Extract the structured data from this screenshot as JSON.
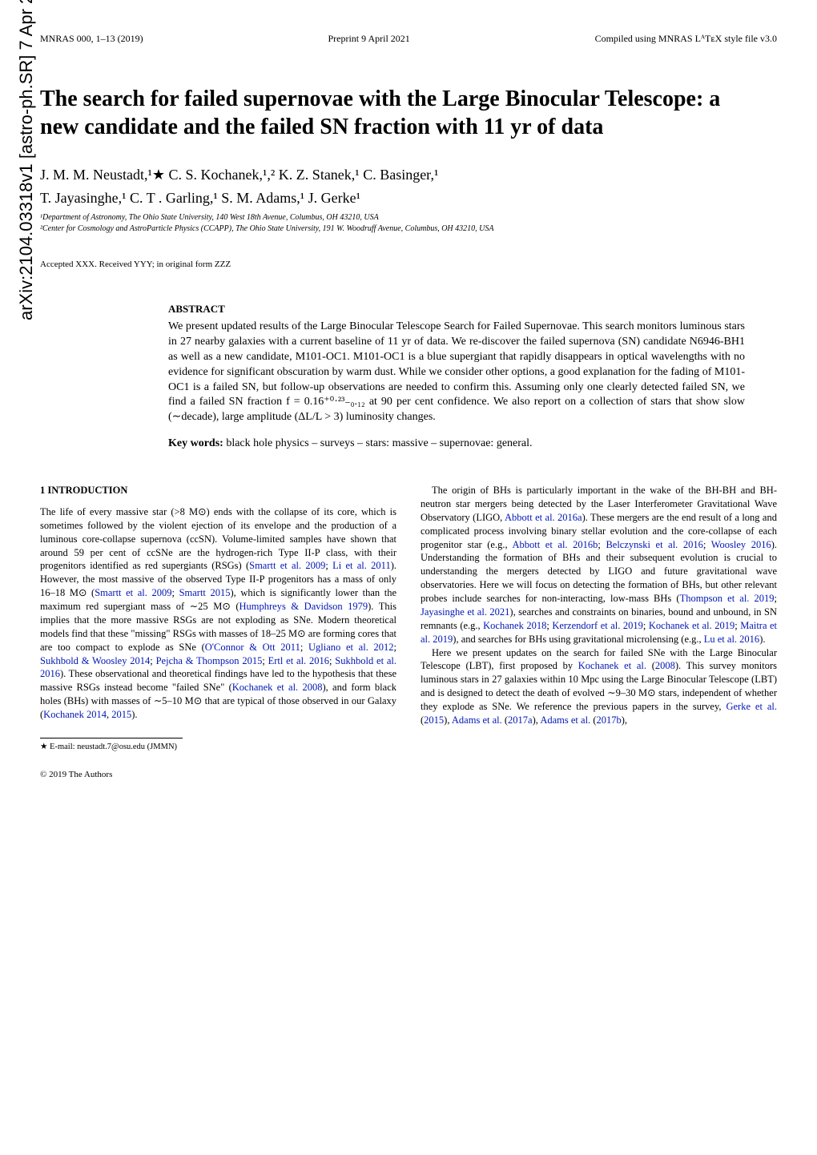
{
  "arxiv": "arXiv:2104.03318v1  [astro-ph.SR]  7 Apr 2021",
  "header": {
    "left": "MNRAS 000, 1–13 (2019)",
    "center": "Preprint 9 April 2021",
    "right": "Compiled using MNRAS LᴬTᴇX style file v3.0"
  },
  "title": "The search for failed supernovae with the Large Binocular Telescope: a new candidate and the failed SN fraction with 11 yr of data",
  "authors_line1": "J. M. M. Neustadt,¹★ C. S. Kochanek,¹,² K. Z. Stanek,¹ C. Basinger,¹",
  "authors_line2": "T. Jayasinghe,¹ C. T . Garling,¹ S. M. Adams,¹ J. Gerke¹",
  "affil1": "¹Department of Astronomy, The Ohio State University, 140 West 18th Avenue, Columbus, OH 43210, USA",
  "affil2": "²Center for Cosmology and AstroParticle Physics (CCAPP), The Ohio State University, 191 W. Woodruff Avenue, Columbus, OH 43210, USA",
  "accepted": "Accepted XXX. Received YYY; in original form ZZZ",
  "abstract_heading": "ABSTRACT",
  "abstract": "We present updated results of the Large Binocular Telescope Search for Failed Supernovae. This search monitors luminous stars in 27 nearby galaxies with a current baseline of 11 yr of data. We re-discover the failed supernova (SN) candidate N6946-BH1 as well as a new candidate, M101-OC1. M101-OC1 is a blue supergiant that rapidly disappears in optical wavelengths with no evidence for significant obscuration by warm dust. While we consider other options, a good explanation for the fading of M101-OC1 is a failed SN, but follow-up observations are needed to confirm this. Assuming only one clearly detected failed SN, we find a failed SN fraction f = 0.16⁺⁰·²³₋₀.₁₂ at 90 per cent confidence. We also report on a collection of stars that show slow (∼decade), large amplitude (ΔL/L > 3) luminosity changes.",
  "keywords_label": "Key words:",
  "keywords": " black hole physics – surveys – stars: massive – supernovae: general.",
  "section1_heading": "1   INTRODUCTION",
  "col1_p1a": "The life of every massive star (>8 M⊙) ends with the collapse of its core, which is sometimes followed by the violent ejection of its envelope and the production of a luminous core-collapse supernova (ccSN). Volume-limited samples have shown that around 59 per cent of ccSNe are the hydrogen-rich Type II-P class, with their progenitors identified as red supergiants (RSGs) (",
  "ref_smartt2009": "Smartt et al. 2009",
  "col1_p1b": "; ",
  "ref_li2011": "Li et al. 2011",
  "col1_p1c": "). However, the most massive of the observed Type II-P progenitors has a mass of only 16–18 M⊙ (",
  "ref_smartt2009b": "Smartt et al. 2009",
  "col1_p1d": "; ",
  "ref_smartt2015": "Smartt 2015",
  "col1_p1e": "), which is significantly lower than the maximum red supergiant mass of ∼25 M⊙ (",
  "ref_humphreys": "Humphreys & Davidson 1979",
  "col1_p1f": "). This implies that the more massive RSGs are not exploding as SNe. Modern theoretical models find that these \"missing\" RSGs with masses of 18–25 M⊙ are forming cores that are too compact to explode as SNe (",
  "ref_oconnor": "O'Connor & Ott 2011",
  "col1_p1g": "; ",
  "ref_ugliano": "Ugliano et al. 2012",
  "col1_p1h": "; ",
  "ref_sukhbold2014": "Sukhbold & Woosley 2014",
  "col1_p1i": "; ",
  "ref_pejcha": "Pejcha & Thompson 2015",
  "col1_p1j": "; ",
  "ref_ertl": "Ertl et al. 2016",
  "col1_p1k": "; ",
  "ref_sukhbold2016": "Sukhbold et al. 2016",
  "col1_p1l": "). These observational and theoretical findings have led to the hypothesis that these massive RSGs instead become \"failed SNe\" (",
  "ref_kochanek2008": "Kochanek et al. 2008",
  "col1_p1m": "), and form black holes (BHs) with masses of ∼5–10 M⊙ that are typical of those observed in our Galaxy (",
  "ref_kochanek2014": "Kochanek 2014",
  "col1_p1n": ", ",
  "ref_kochanek2015": "2015",
  "col1_p1o": ").",
  "col2_p1a": "The origin of BHs is particularly important in the wake of the BH-BH and BH-neutron star mergers being detected by the Laser Interferometer Gravitational Wave Observatory (LIGO, ",
  "ref_abbott2016a": "Abbott et al. 2016a",
  "col2_p1b": "). These mergers are the end result of a long and complicated process involving binary stellar evolution and the core-collapse of each progenitor star (e.g., ",
  "ref_abbott2016b": "Abbott et al. 2016b",
  "col2_p1c": "; ",
  "ref_belczynski": "Belczynski et al. 2016",
  "col2_p1d": "; ",
  "ref_woosley": "Woosley 2016",
  "col2_p1e": "). Understanding the formation of BHs and their subsequent evolution is crucial to understanding the mergers detected by LIGO and future gravitational wave observatories. Here we will focus on detecting the formation of BHs, but other relevant probes include searches for non-interacting, low-mass BHs (",
  "ref_thompson": "Thompson et al. 2019",
  "col2_p1f": "; ",
  "ref_jayasinghe": "Jayasinghe et al. 2021",
  "col2_p1g": "), searches and constraints on binaries, bound and unbound, in SN remnants (e.g., ",
  "ref_kochanek2018": "Kochanek 2018",
  "col2_p1h": "; ",
  "ref_kerzendorf": "Kerzendorf et al. 2019",
  "col2_p1i": "; ",
  "ref_kochanek2019": "Kochanek et al. 2019",
  "col2_p1j": "; ",
  "ref_maitra": "Maitra et al. 2019",
  "col2_p1k": "), and searches for BHs using gravitational microlensing (e.g., ",
  "ref_lu": "Lu et al. 2016",
  "col2_p1l": ").",
  "col2_p2a": "Here we present updates on the search for failed SNe with the Large Binocular Telescope (LBT), first proposed by ",
  "ref_kochanek2008b": "Kochanek et al.",
  "col2_p2b": " (",
  "ref_2008": "2008",
  "col2_p2c": "). This survey monitors luminous stars in 27 galaxies within 10 Mpc using the Large Binocular Telescope (LBT) and is designed to detect the death of evolved ∼9–30 M⊙ stars, independent of whether they explode as SNe. We reference the previous papers in the survey, ",
  "ref_gerke": "Gerke et al.",
  "col2_p2d": " (",
  "ref_2015": "2015",
  "col2_p2e": "), ",
  "ref_adams2017a": "Adams et al.",
  "col2_p2f": " (",
  "ref_2017a": "2017a",
  "col2_p2g": "), ",
  "ref_adams2017b": "Adams et al.",
  "col2_p2h": " (",
  "ref_2017b": "2017b",
  "col2_p2i": "),",
  "footnote": "★ E-mail: neustadt.7@osu.edu (JMMN)",
  "copyright": "© 2019 The Authors",
  "colors": {
    "ref_color": "#0016b5",
    "text_color": "#000000",
    "bg_color": "#ffffff"
  }
}
